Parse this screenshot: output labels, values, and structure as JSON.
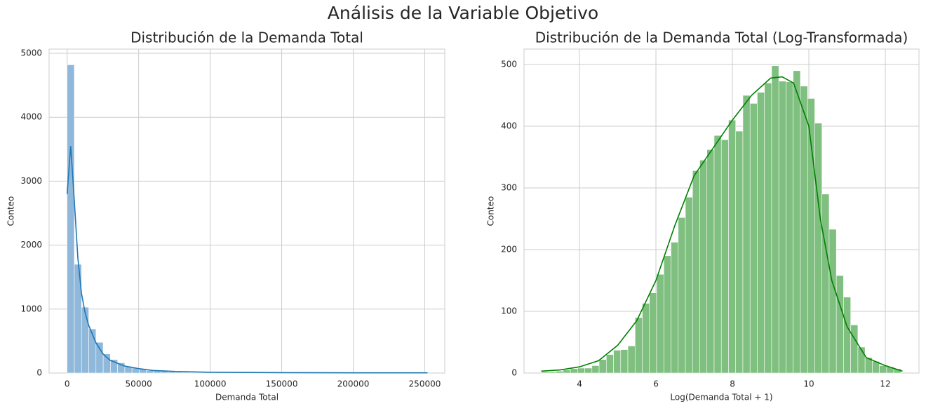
{
  "suptitle": "Análisis de la Variable Objetivo",
  "chart_data": [
    {
      "type": "histogram",
      "title": "Distribución de la Demanda Total",
      "x_label": "Demanda Total",
      "y_label": "Conteo",
      "bins": [
        0,
        5040,
        10080,
        15120,
        20160,
        25200,
        30240,
        35280,
        40320,
        45360,
        50400,
        55440,
        60480,
        65520,
        70560,
        75600,
        80640,
        85680,
        90720,
        95760,
        100800,
        105840,
        110880,
        115920,
        120960,
        126000,
        131040,
        136080,
        141120,
        146160,
        151200,
        156240,
        161280,
        166320,
        171360,
        176400,
        181440,
        186480,
        191520,
        196560,
        201600,
        206640,
        211680,
        216720,
        221760,
        226800,
        231840,
        236880,
        241920,
        246960,
        252000
      ],
      "values": [
        4820,
        1700,
        1030,
        690,
        480,
        300,
        210,
        160,
        100,
        80,
        70,
        40,
        35,
        30,
        20,
        15,
        12,
        10,
        8,
        8,
        6,
        5,
        5,
        4,
        3,
        3,
        3,
        2,
        2,
        2,
        2,
        1,
        1,
        1,
        1,
        1,
        1,
        1,
        1,
        0,
        0,
        1,
        0,
        0,
        0,
        0,
        0,
        0,
        0,
        1
      ],
      "color": "#8fb8da",
      "kde": {
        "x": [
          0,
          2500,
          5000,
          7500,
          10000,
          12500,
          15000,
          20000,
          25000,
          30000,
          40000,
          50000,
          60000,
          75000,
          100000,
          150000,
          200000,
          252000
        ],
        "y": [
          2800,
          3550,
          2700,
          1800,
          1250,
          950,
          750,
          480,
          300,
          200,
          110,
          70,
          40,
          25,
          12,
          6,
          4,
          3
        ],
        "color": "#1f77b4"
      },
      "xlim": [
        -12600,
        264000
      ],
      "ylim": [
        0,
        5066
      ],
      "xticks": [
        0,
        50000,
        100000,
        150000,
        200000,
        250000
      ],
      "yticks": [
        0,
        1000,
        2000,
        3000,
        4000,
        5000
      ],
      "grid": true
    },
    {
      "type": "histogram",
      "title": "Distribución de la Demanda Total (Log-Transformada)",
      "x_label": "Log(Demanda Total + 1)",
      "y_label": "Conteo",
      "bins": [
        3.01,
        3.198,
        3.386,
        3.574,
        3.762,
        3.95,
        4.138,
        4.326,
        4.514,
        4.702,
        4.89,
        5.078,
        5.266,
        5.454,
        5.642,
        5.83,
        6.018,
        6.206,
        6.394,
        6.582,
        6.77,
        6.958,
        7.146,
        7.334,
        7.522,
        7.71,
        7.898,
        8.086,
        8.274,
        8.462,
        8.65,
        8.838,
        9.026,
        9.214,
        9.402,
        9.59,
        9.778,
        9.966,
        10.154,
        10.342,
        10.53,
        10.718,
        10.906,
        11.094,
        11.282,
        11.47,
        11.658,
        11.846,
        12.034,
        12.222,
        12.41
      ],
      "values": [
        2,
        2,
        3,
        5,
        7,
        8,
        8,
        12,
        22,
        30,
        37,
        38,
        44,
        90,
        113,
        130,
        160,
        190,
        212,
        252,
        285,
        328,
        345,
        362,
        385,
        378,
        410,
        392,
        450,
        437,
        455,
        470,
        498,
        473,
        472,
        490,
        465,
        445,
        405,
        290,
        233,
        158,
        123,
        78,
        42,
        25,
        19,
        12,
        10,
        7
      ],
      "color": "#7fbf7f",
      "kde": {
        "x": [
          3.0,
          3.5,
          4.0,
          4.5,
          5.0,
          5.5,
          6.0,
          6.5,
          7.0,
          7.5,
          8.0,
          8.5,
          9.0,
          9.3,
          9.6,
          10.0,
          10.3,
          10.6,
          11.0,
          11.5,
          12.0,
          12.45
        ],
        "y": [
          3,
          5,
          10,
          20,
          45,
          85,
          150,
          240,
          320,
          365,
          410,
          450,
          478,
          480,
          470,
          400,
          250,
          150,
          75,
          25,
          12,
          3
        ],
        "color": "#008000"
      },
      "xlim": [
        2.55,
        12.88
      ],
      "ylim": [
        0,
        525
      ],
      "xticks": [
        4,
        6,
        8,
        10,
        12
      ],
      "yticks": [
        0,
        100,
        200,
        300,
        400,
        500
      ],
      "grid": true
    }
  ]
}
